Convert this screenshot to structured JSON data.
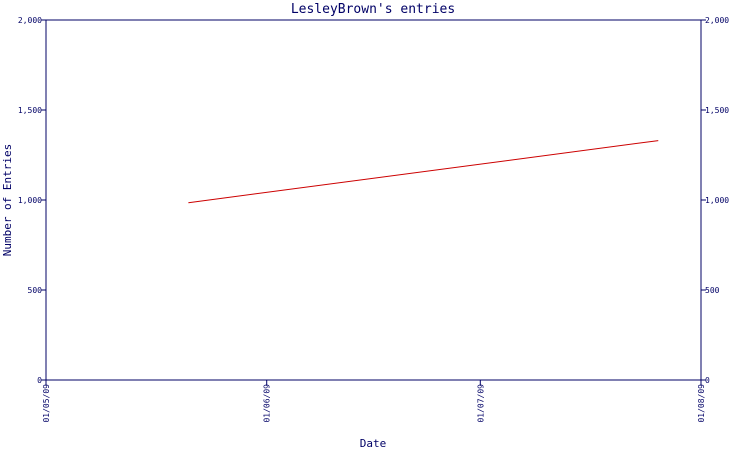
{
  "chart_data": {
    "type": "line",
    "title": "LesleyBrown's entries",
    "xlabel": "Date",
    "ylabel": "Number of Entries",
    "x_ticks": [
      "01/05/09",
      "01/06/09",
      "01/07/09",
      "01/08/09"
    ],
    "x_range": [
      "01/05/09",
      "01/08/09"
    ],
    "y_ticks": [
      "0",
      "500",
      "1,000",
      "1,500",
      "2,000"
    ],
    "y_tick_values": [
      0,
      500,
      1000,
      1500,
      2000
    ],
    "ylim": [
      0,
      2000
    ],
    "grid": false,
    "series": [
      {
        "color": "#cc0000",
        "points": [
          {
            "x": "2009-05-21",
            "y": 985
          },
          {
            "x": "2009-07-26",
            "y": 1330
          }
        ]
      }
    ]
  },
  "colors": {
    "axis": "#000066",
    "text": "#000066",
    "line": "#cc0000"
  }
}
